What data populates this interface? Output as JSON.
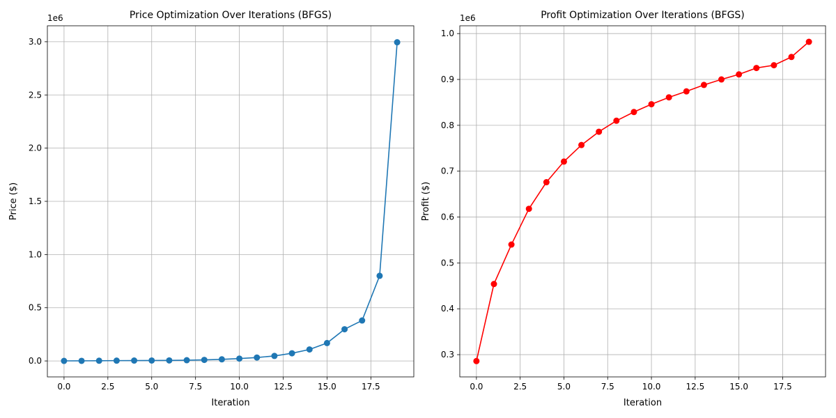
{
  "chart_data": [
    {
      "type": "line",
      "title": "Price Optimization Over Iterations (BFGS)",
      "xlabel": "Iteration",
      "ylabel": "Price ($)",
      "y_offset_label": "1e6",
      "xlim": [
        -0.95,
        19.95
      ],
      "ylim": [
        -150000,
        3150000
      ],
      "x_ticks": [
        0,
        2.5,
        5,
        7.5,
        10,
        12.5,
        15,
        17.5
      ],
      "x_tick_labels": [
        "0.0",
        "2.5",
        "5.0",
        "7.5",
        "10.0",
        "12.5",
        "15.0",
        "17.5"
      ],
      "y_ticks": [
        0,
        500000,
        1000000,
        1500000,
        2000000,
        2500000,
        3000000
      ],
      "y_tick_labels": [
        "0.0",
        "0.5",
        "1.0",
        "1.5",
        "2.0",
        "2.5",
        "3.0"
      ],
      "grid": true,
      "series": [
        {
          "color": "#1f77b4",
          "marker": "circle",
          "x": [
            0,
            1,
            2,
            3,
            4,
            5,
            6,
            7,
            8,
            9,
            10,
            11,
            12,
            13,
            14,
            15,
            16,
            17,
            18,
            19
          ],
          "y": [
            500,
            1000,
            2000,
            3000,
            3500,
            4000,
            5000,
            7000,
            10000,
            15000,
            22000,
            32000,
            47000,
            72000,
            108000,
            168000,
            298000,
            380000,
            800000,
            2995000
          ]
        }
      ]
    },
    {
      "type": "line",
      "title": "Profit Optimization Over Iterations (BFGS)",
      "xlabel": "Iteration",
      "ylabel": "Profit ($)",
      "y_offset_label": "1e6",
      "xlim": [
        -0.95,
        19.95
      ],
      "ylim": [
        0.2515,
        1.017
      ],
      "x_ticks": [
        0,
        2.5,
        5,
        7.5,
        10,
        12.5,
        15,
        17.5
      ],
      "x_tick_labels": [
        "0.0",
        "2.5",
        "5.0",
        "7.5",
        "10.0",
        "12.5",
        "15.0",
        "17.5"
      ],
      "y_ticks": [
        0.3,
        0.4,
        0.5,
        0.6,
        0.7,
        0.8,
        0.9,
        1.0
      ],
      "y_tick_labels": [
        "0.3",
        "0.4",
        "0.5",
        "0.6",
        "0.7",
        "0.8",
        "0.9",
        "1.0"
      ],
      "grid": true,
      "series": [
        {
          "color": "#ff0000",
          "marker": "circle",
          "x": [
            0,
            1,
            2,
            3,
            4,
            5,
            6,
            7,
            8,
            9,
            10,
            11,
            12,
            13,
            14,
            15,
            16,
            17,
            18,
            19
          ],
          "y": [
            0.286,
            0.454,
            0.54,
            0.618,
            0.676,
            0.721,
            0.757,
            0.786,
            0.81,
            0.829,
            0.846,
            0.861,
            0.874,
            0.888,
            0.9,
            0.911,
            0.925,
            0.931,
            0.949,
            0.982
          ]
        }
      ]
    }
  ]
}
